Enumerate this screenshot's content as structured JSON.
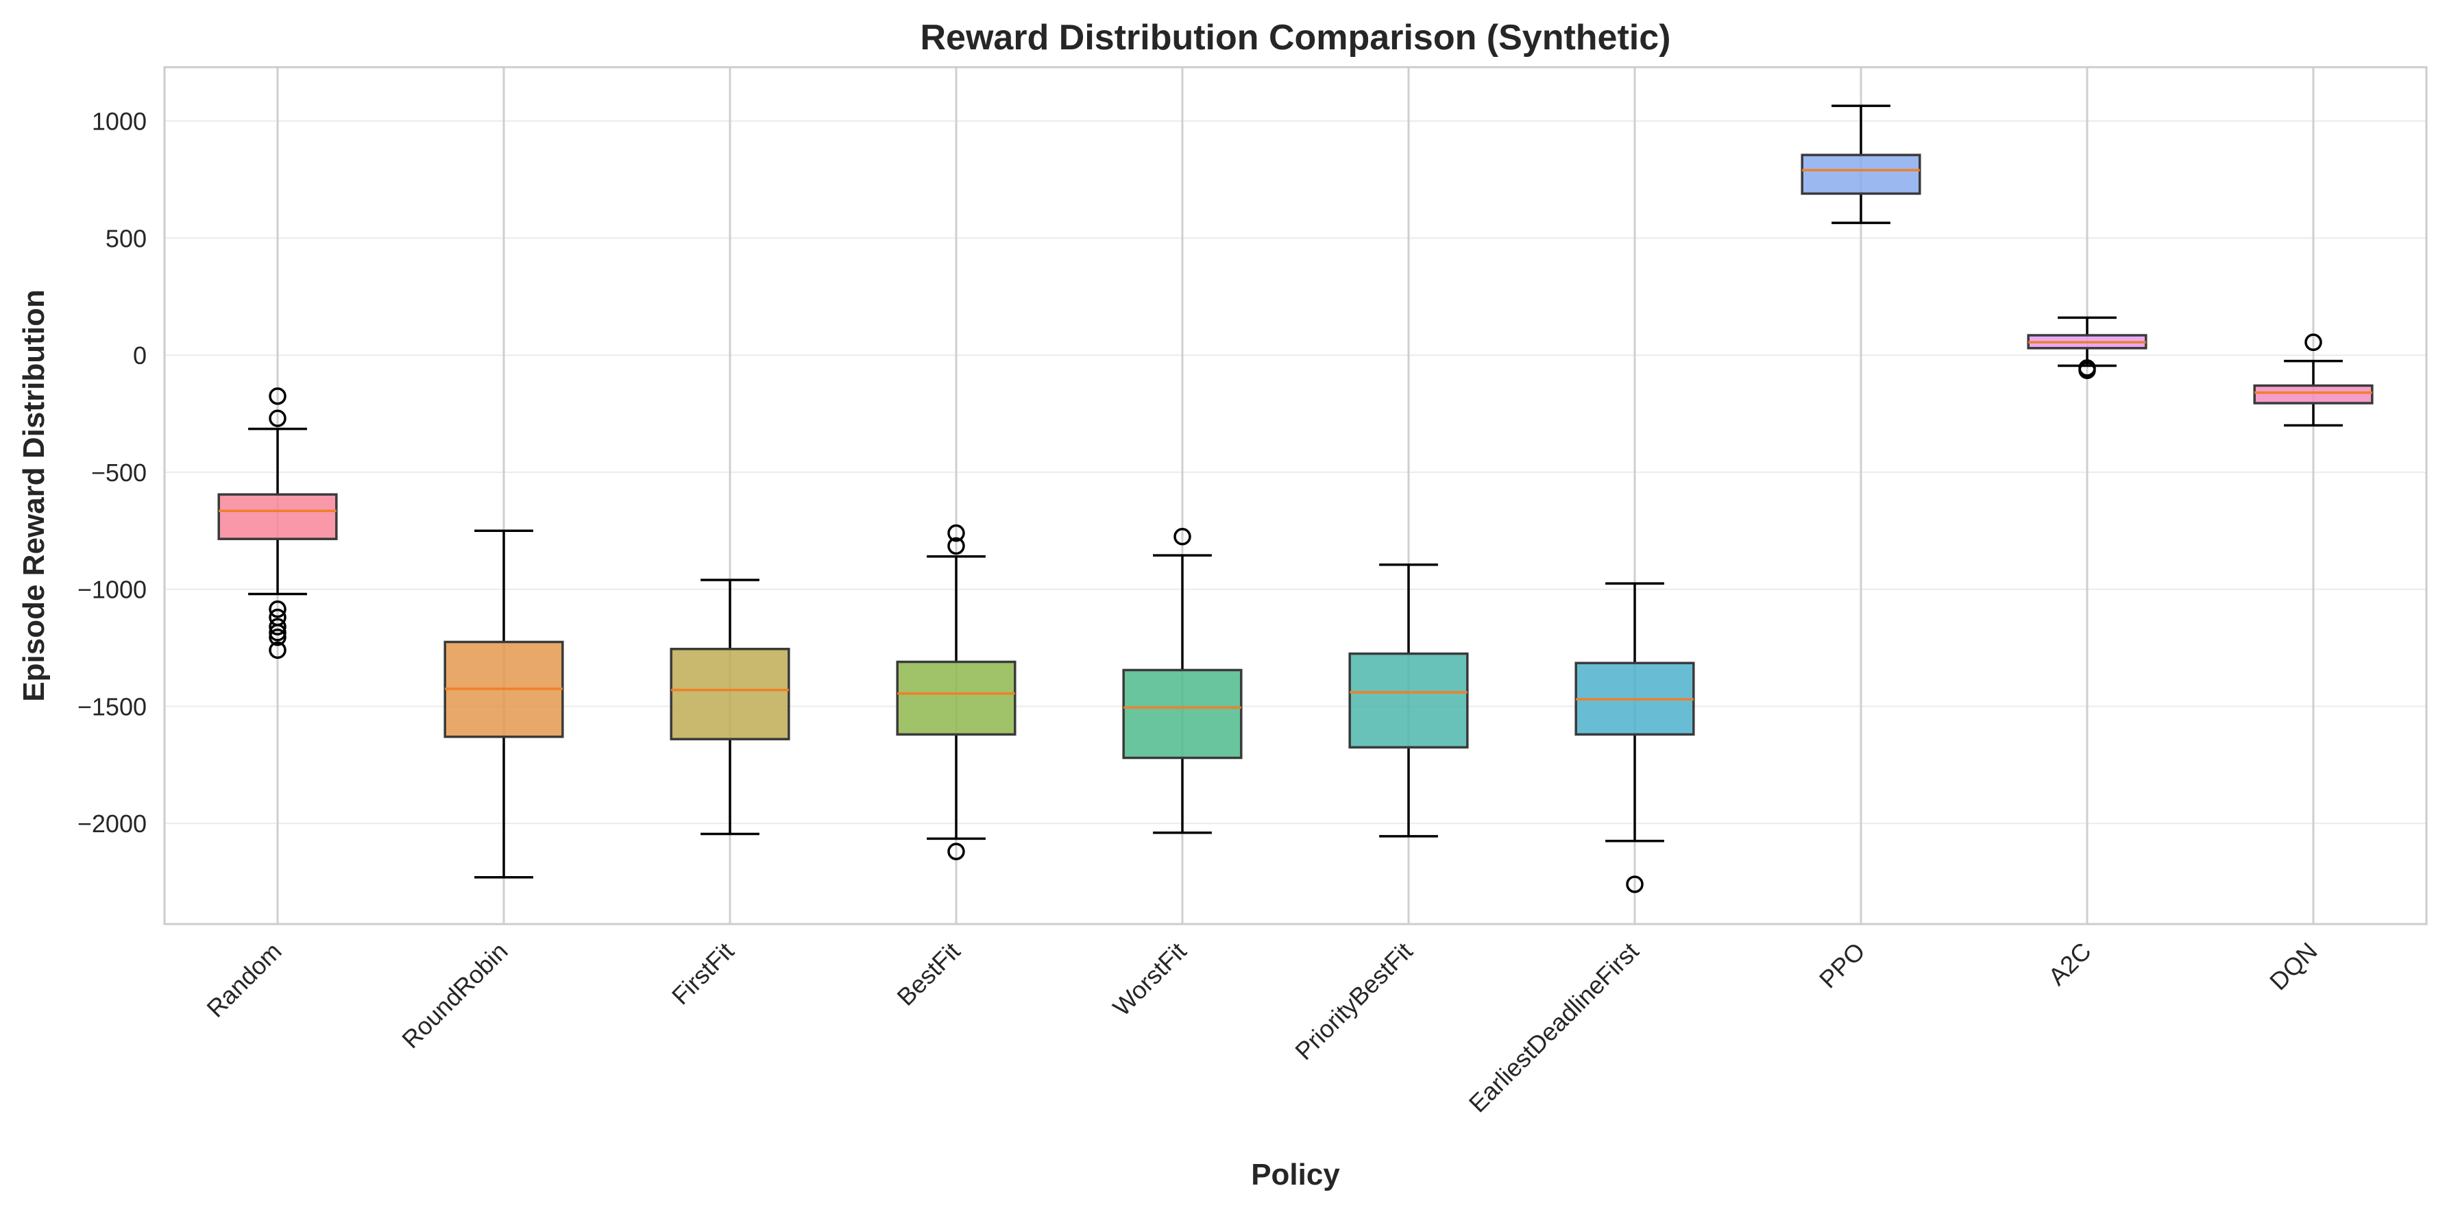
{
  "chart_data": {
    "type": "box",
    "title": "Reward Distribution Comparison (Synthetic)",
    "xlabel": "Policy",
    "ylabel": "Episode Reward Distribution",
    "ylim": [
      -2430,
      1230
    ],
    "yticks": [
      1000,
      500,
      0,
      -500,
      -1000,
      -1500,
      -2000
    ],
    "ytick_labels": [
      "1000",
      "500",
      "0",
      "−500",
      "−1000",
      "−1500",
      "−2000"
    ],
    "grid": true,
    "median_color": "#f07f2a",
    "categories": [
      "Random",
      "RoundRobin",
      "FirstFit",
      "BestFit",
      "WorstFit",
      "PriorityBestFit",
      "EarliestDeadlineFirst",
      "PPO",
      "A2C",
      "DQN"
    ],
    "boxes": [
      {
        "name": "Random",
        "whisker_low": -1020,
        "q1": -785,
        "median": -665,
        "q3": -595,
        "whisker_high": -315,
        "outliers": [
          -175,
          -270,
          -1085,
          -1120,
          -1160,
          -1185,
          -1205,
          -1260
        ],
        "color": "#f7869a"
      },
      {
        "name": "RoundRobin",
        "whisker_low": -2230,
        "q1": -1630,
        "median": -1425,
        "q3": -1225,
        "whisker_high": -750,
        "outliers": [],
        "color": "#e3994f"
      },
      {
        "name": "FirstFit",
        "whisker_low": -2045,
        "q1": -1640,
        "median": -1430,
        "q3": -1255,
        "whisker_high": -960,
        "outliers": [],
        "color": "#bead55"
      },
      {
        "name": "BestFit",
        "whisker_low": -2065,
        "q1": -1620,
        "median": -1445,
        "q3": -1310,
        "whisker_high": -860,
        "outliers": [
          -2120,
          -760,
          -815
        ],
        "color": "#8fb94f"
      },
      {
        "name": "WorstFit",
        "whisker_low": -2040,
        "q1": -1720,
        "median": -1505,
        "q3": -1345,
        "whisker_high": -855,
        "outliers": [
          -775
        ],
        "color": "#4dbb8c"
      },
      {
        "name": "PriorityBestFit",
        "whisker_low": -2055,
        "q1": -1675,
        "median": -1440,
        "q3": -1275,
        "whisker_high": -895,
        "outliers": [],
        "color": "#4db7ad"
      },
      {
        "name": "EarliestDeadlineFirst",
        "whisker_low": -2075,
        "q1": -1620,
        "median": -1470,
        "q3": -1315,
        "whisker_high": -975,
        "outliers": [
          -2260
        ],
        "color": "#4db2cd"
      },
      {
        "name": "PPO",
        "whisker_low": 565,
        "q1": 690,
        "median": 790,
        "q3": 855,
        "whisker_high": 1065,
        "outliers": [],
        "color": "#8bacef"
      },
      {
        "name": "A2C",
        "whisker_low": -45,
        "q1": 30,
        "median": 55,
        "q3": 85,
        "whisker_high": 160,
        "outliers": [
          -55,
          -65
        ],
        "color": "#e89af0"
      },
      {
        "name": "DQN",
        "whisker_low": -300,
        "q1": -205,
        "median": -160,
        "q3": -130,
        "whisker_high": -25,
        "outliers": [
          55
        ],
        "color": "#f48cbd"
      }
    ]
  }
}
